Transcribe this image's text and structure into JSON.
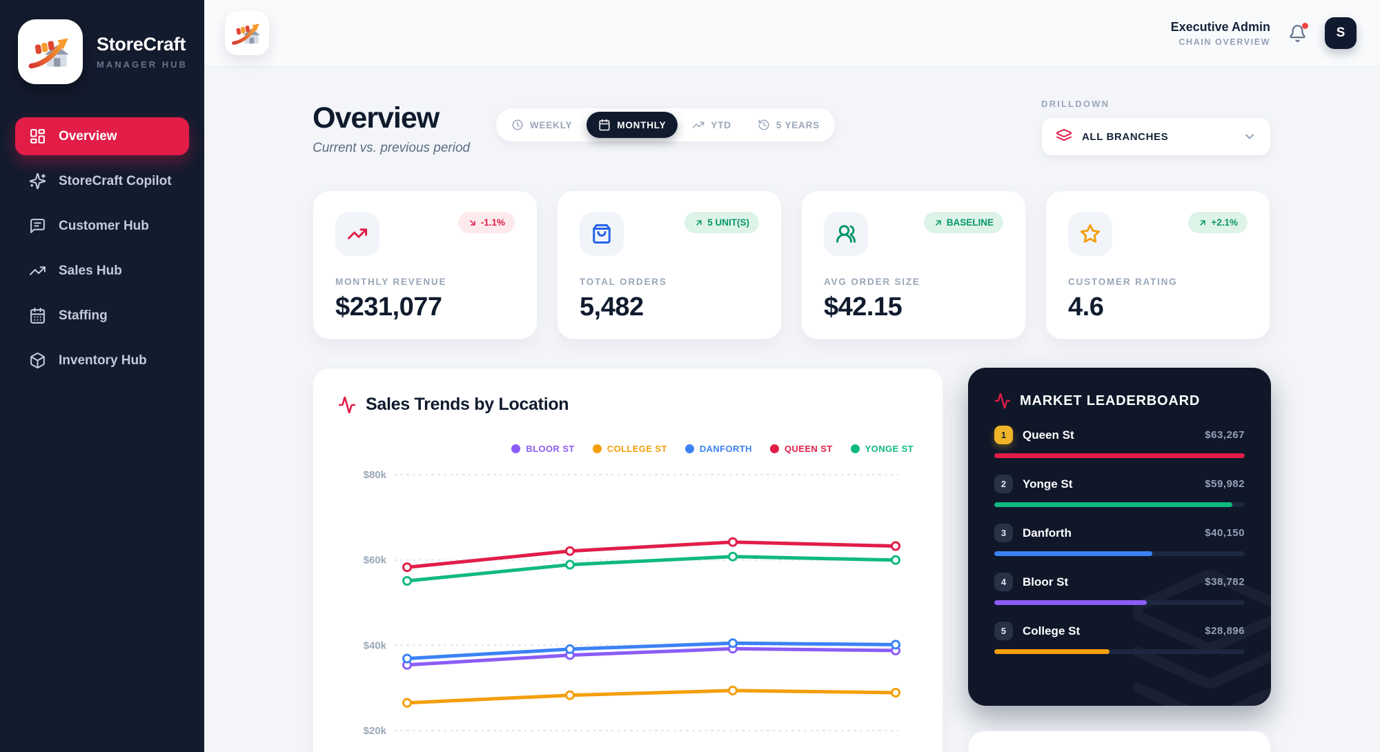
{
  "brand": {
    "name": "StoreCraft",
    "tagline": "MANAGER HUB"
  },
  "header": {
    "role": "Executive Admin",
    "context": "CHAIN OVERVIEW",
    "avatar_initial": "S"
  },
  "sidebar": {
    "items": [
      {
        "label": "Overview",
        "icon": "dashboard-icon",
        "active": true
      },
      {
        "label": "StoreCraft Copilot",
        "icon": "sparkles-icon",
        "active": false
      },
      {
        "label": "Customer Hub",
        "icon": "message-square-icon",
        "active": false
      },
      {
        "label": "Sales Hub",
        "icon": "trending-up-icon",
        "active": false
      },
      {
        "label": "Staffing",
        "icon": "calendar-icon",
        "active": false
      },
      {
        "label": "Inventory Hub",
        "icon": "package-icon",
        "active": false
      }
    ]
  },
  "page": {
    "title": "Overview",
    "subtitle": "Current vs. previous period"
  },
  "period_tabs": [
    {
      "label": "WEEKLY",
      "icon": "clock-icon",
      "active": false
    },
    {
      "label": "MONTHLY",
      "icon": "calendar-icon",
      "active": true
    },
    {
      "label": "YTD",
      "icon": "trending-up-icon",
      "active": false
    },
    {
      "label": "5 YEARS",
      "icon": "history-icon",
      "active": false
    }
  ],
  "drilldown": {
    "label": "DRILLDOWN",
    "value": "ALL BRANCHES",
    "icon": "layers-icon"
  },
  "kpis": [
    {
      "label": "MONTHLY REVENUE",
      "value": "$231,077",
      "badge": "-1.1%",
      "trend": "down",
      "icon": "trending-up-icon",
      "icon_color": "#e11d48"
    },
    {
      "label": "TOTAL ORDERS",
      "value": "5,482",
      "badge": "5 UNIT(S)",
      "trend": "up",
      "icon": "shopping-bag-icon",
      "icon_color": "#2563eb"
    },
    {
      "label": "AVG ORDER SIZE",
      "value": "$42.15",
      "badge": "BASELINE",
      "trend": "up",
      "icon": "users-icon",
      "icon_color": "#059669"
    },
    {
      "label": "CUSTOMER RATING",
      "value": "4.6",
      "badge": "+2.1%",
      "trend": "up",
      "icon": "star-icon",
      "icon_color": "#f59e0b"
    }
  ],
  "chart_card": {
    "title": "Sales Trends by Location"
  },
  "chart_data": {
    "type": "line",
    "x": [
      1,
      2,
      3,
      4
    ],
    "series": [
      {
        "name": "BLOOR ST",
        "color": "#8b5cf6",
        "values": [
          35400,
          37700,
          39200,
          38782
        ]
      },
      {
        "name": "COLLEGE ST",
        "color": "#f59e0b",
        "values": [
          26500,
          28300,
          29400,
          28896
        ]
      },
      {
        "name": "DANFORTH",
        "color": "#3b82f6",
        "values": [
          36900,
          39100,
          40500,
          40150
        ]
      },
      {
        "name": "QUEEN ST",
        "color": "#e11d48",
        "values": [
          58300,
          62100,
          64200,
          63267
        ]
      },
      {
        "name": "YONGE ST",
        "color": "#10b981",
        "values": [
          55100,
          58900,
          60800,
          59982
        ]
      }
    ],
    "ylim": [
      20000,
      80000
    ],
    "yticks": [
      "$80k",
      "$60k",
      "$40k",
      "$20k"
    ],
    "grid": "dashed-horizontal",
    "legend_position": "top-right",
    "title": "Sales Trends by Location"
  },
  "leaderboard": {
    "title": "MARKET LEADERBOARD",
    "rows": [
      {
        "rank": "1",
        "name": "Queen St",
        "value": "$63,267",
        "pct": 100,
        "color": "#e11d48"
      },
      {
        "rank": "2",
        "name": "Yonge St",
        "value": "$59,982",
        "pct": 95,
        "color": "#10b981"
      },
      {
        "rank": "3",
        "name": "Danforth",
        "value": "$40,150",
        "pct": 63,
        "color": "#3b82f6"
      },
      {
        "rank": "4",
        "name": "Bloor St",
        "value": "$38,782",
        "pct": 61,
        "color": "#8b5cf6"
      },
      {
        "rank": "5",
        "name": "College St",
        "value": "$28,896",
        "pct": 46,
        "color": "#f59e0b"
      }
    ]
  },
  "colors": {
    "accent": "#e11d48",
    "sidebar_bg": "#131b2e",
    "panel_dark": "#0f1729",
    "success": "#059669",
    "danger": "#e11d48"
  }
}
